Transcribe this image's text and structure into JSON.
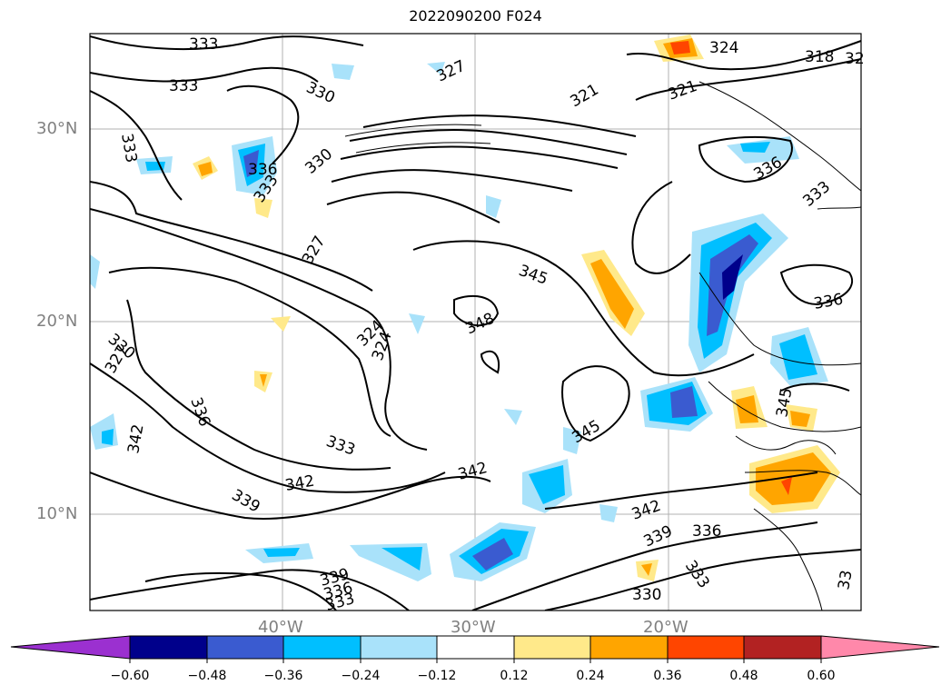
{
  "title": "2022090200 F024",
  "axes": {
    "lat_labels": [
      "30°N",
      "20°N",
      "10°N"
    ],
    "lon_labels": [
      "40°W",
      "30°W",
      "20°W"
    ]
  },
  "contour_labels": [
    "333",
    "333",
    "330",
    "327",
    "321",
    "324",
    "321",
    "318",
    "32",
    "333",
    "336",
    "333",
    "330",
    "336",
    "333",
    "327",
    "345",
    "348",
    "324",
    "324",
    "330",
    "327",
    "336",
    "333",
    "342",
    "342",
    "345",
    "342",
    "339",
    "342",
    "339",
    "336",
    "339",
    "336",
    "333",
    "333",
    "330",
    "336",
    "345",
    "33"
  ],
  "colorbar": {
    "ticks": [
      "−0.60",
      "−0.48",
      "−0.36",
      "−0.24",
      "−0.12",
      "0.12",
      "0.24",
      "0.36",
      "0.48",
      "0.60"
    ],
    "colors": [
      "#9b30d0",
      "#00008b",
      "#3a5bd0",
      "#00bfff",
      "#a9e2fa",
      "#ffffff",
      "#ffe98a",
      "#ffa500",
      "#ff4500",
      "#b22222",
      "#ff88aa"
    ]
  }
}
